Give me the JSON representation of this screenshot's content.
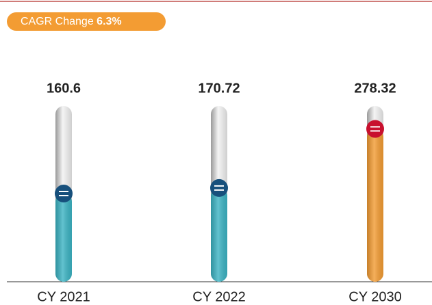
{
  "chart_data": {
    "type": "thermometer",
    "badge": {
      "label": "CAGR Change",
      "value": "6.3%"
    },
    "categories": [
      "CY 2021",
      "CY 2022",
      "CY 2030"
    ],
    "values": [
      160.6,
      170.72,
      278.32
    ],
    "colors": [
      "#3bb3c3",
      "#3bb3c3",
      "#f39c33"
    ],
    "marker_colors": [
      "#17507c",
      "#17507c",
      "#c8102e"
    ],
    "ylim": [
      0,
      320
    ]
  }
}
